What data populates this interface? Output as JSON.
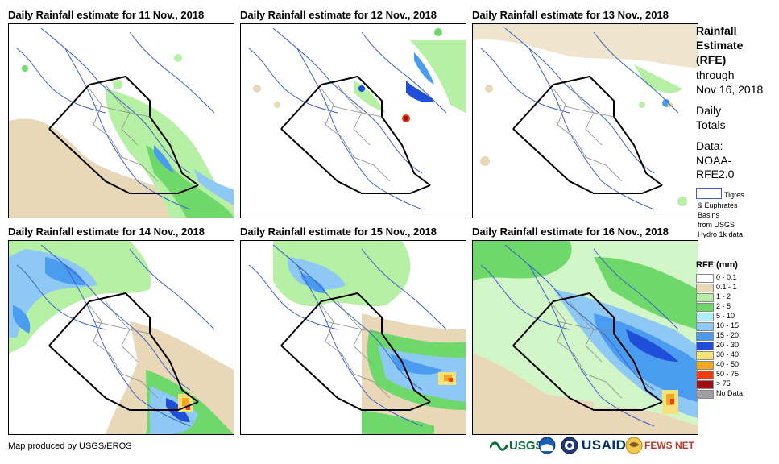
{
  "panels": [
    {
      "title": "Daily Rainfall estimate for 11 Nov., 2018"
    },
    {
      "title": "Daily Rainfall estimate for 12 Nov., 2018"
    },
    {
      "title": "Daily Rainfall estimate for 13 Nov., 2018"
    },
    {
      "title": "Daily Rainfall estimate for 14 Nov., 2018"
    },
    {
      "title": "Daily Rainfall estimate for 15 Nov., 2018"
    },
    {
      "title": "Daily Rainfall estimate for 16 Nov., 2018"
    }
  ],
  "legend": {
    "title_line1": "Rainfall",
    "title_line2": "Estimate",
    "title_line3": "(RFE)",
    "through": "through",
    "date": "Nov 16, 2018",
    "daily": "Daily",
    "totals": "Totals",
    "data_label": "Data:",
    "data_line2": "NOAA-",
    "data_line3": "RFE2.0",
    "basin_line1": "Tigres",
    "basin_line2": "& Euphrates",
    "basin_line3": "Basins",
    "basin_line4": "from USGS",
    "basin_line5": "Hydro 1k data",
    "rfe_title": "RFE (mm)",
    "classes": [
      {
        "label": "0 - 0.1",
        "color": "#ffffff"
      },
      {
        "label": "0.1 - 1",
        "color": "#e8d8b8"
      },
      {
        "label": "1 - 2",
        "color": "#b6f0a4"
      },
      {
        "label": "2 - 5",
        "color": "#6fd86a"
      },
      {
        "label": "5 - 10",
        "color": "#b2ecf4"
      },
      {
        "label": "10 - 15",
        "color": "#8ec8f4"
      },
      {
        "label": "15 - 20",
        "color": "#4a9cf0"
      },
      {
        "label": "20 - 30",
        "color": "#1f4fd8"
      },
      {
        "label": "30 - 40",
        "color": "#f6e27a"
      },
      {
        "label": "40 - 50",
        "color": "#f5a623"
      },
      {
        "label": "50 - 75",
        "color": "#f03c10"
      },
      {
        "label": "> 75",
        "color": "#a01010"
      },
      {
        "label": "No Data",
        "color": "#a0a0a0"
      }
    ]
  },
  "footer": {
    "credit": "Map produced by USGS/EROS",
    "logo_usgs": "USGS",
    "logo_usaid": "USAID",
    "logo_fews": "FEWS NET"
  }
}
